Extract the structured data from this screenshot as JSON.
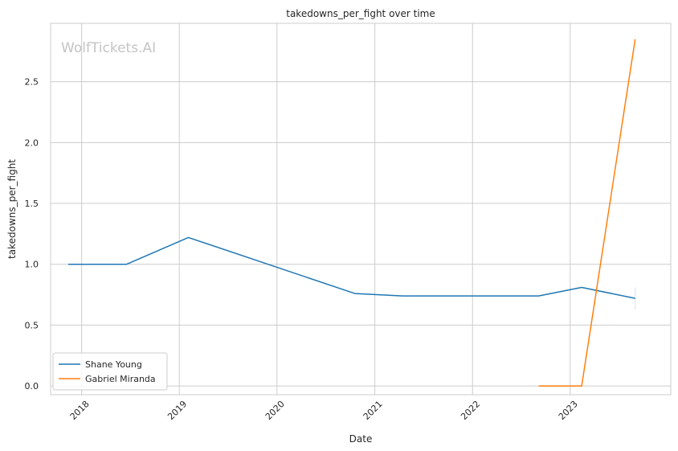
{
  "chart_data": {
    "type": "line",
    "title": "takedowns_per_fight over time",
    "xlabel": "Date",
    "ylabel": "takedowns_per_fight",
    "watermark": "WolfTickets.AI",
    "x_ticks": [
      "2018",
      "2019",
      "2020",
      "2021",
      "2022",
      "2023"
    ],
    "y_ticks": [
      "0.0",
      "0.5",
      "1.0",
      "1.5",
      "2.0",
      "2.5"
    ],
    "xlim": [
      "2017-09-07",
      "2024-01-12"
    ],
    "ylim": [
      -0.072,
      2.98
    ],
    "grid": true,
    "legend_position": "lower-left",
    "series": [
      {
        "name": "Shane Young",
        "color": "#1f77b4",
        "points": [
          [
            "2017-11-12",
            1.0
          ],
          [
            "2018-06-18",
            1.0
          ],
          [
            "2019-02-04",
            1.22
          ],
          [
            "2020-10-18",
            0.76
          ],
          [
            "2021-04-15",
            0.74
          ],
          [
            "2022-09-05",
            0.74
          ],
          [
            "2023-02-13",
            0.81
          ],
          [
            "2023-09-01",
            0.72
          ]
        ]
      },
      {
        "name": "Gabriel Miranda",
        "color": "#ff7f0e",
        "points": [
          [
            "2022-09-05",
            0.0
          ],
          [
            "2023-02-13",
            0.0
          ],
          [
            "2023-09-01",
            2.85
          ]
        ]
      }
    ]
  }
}
